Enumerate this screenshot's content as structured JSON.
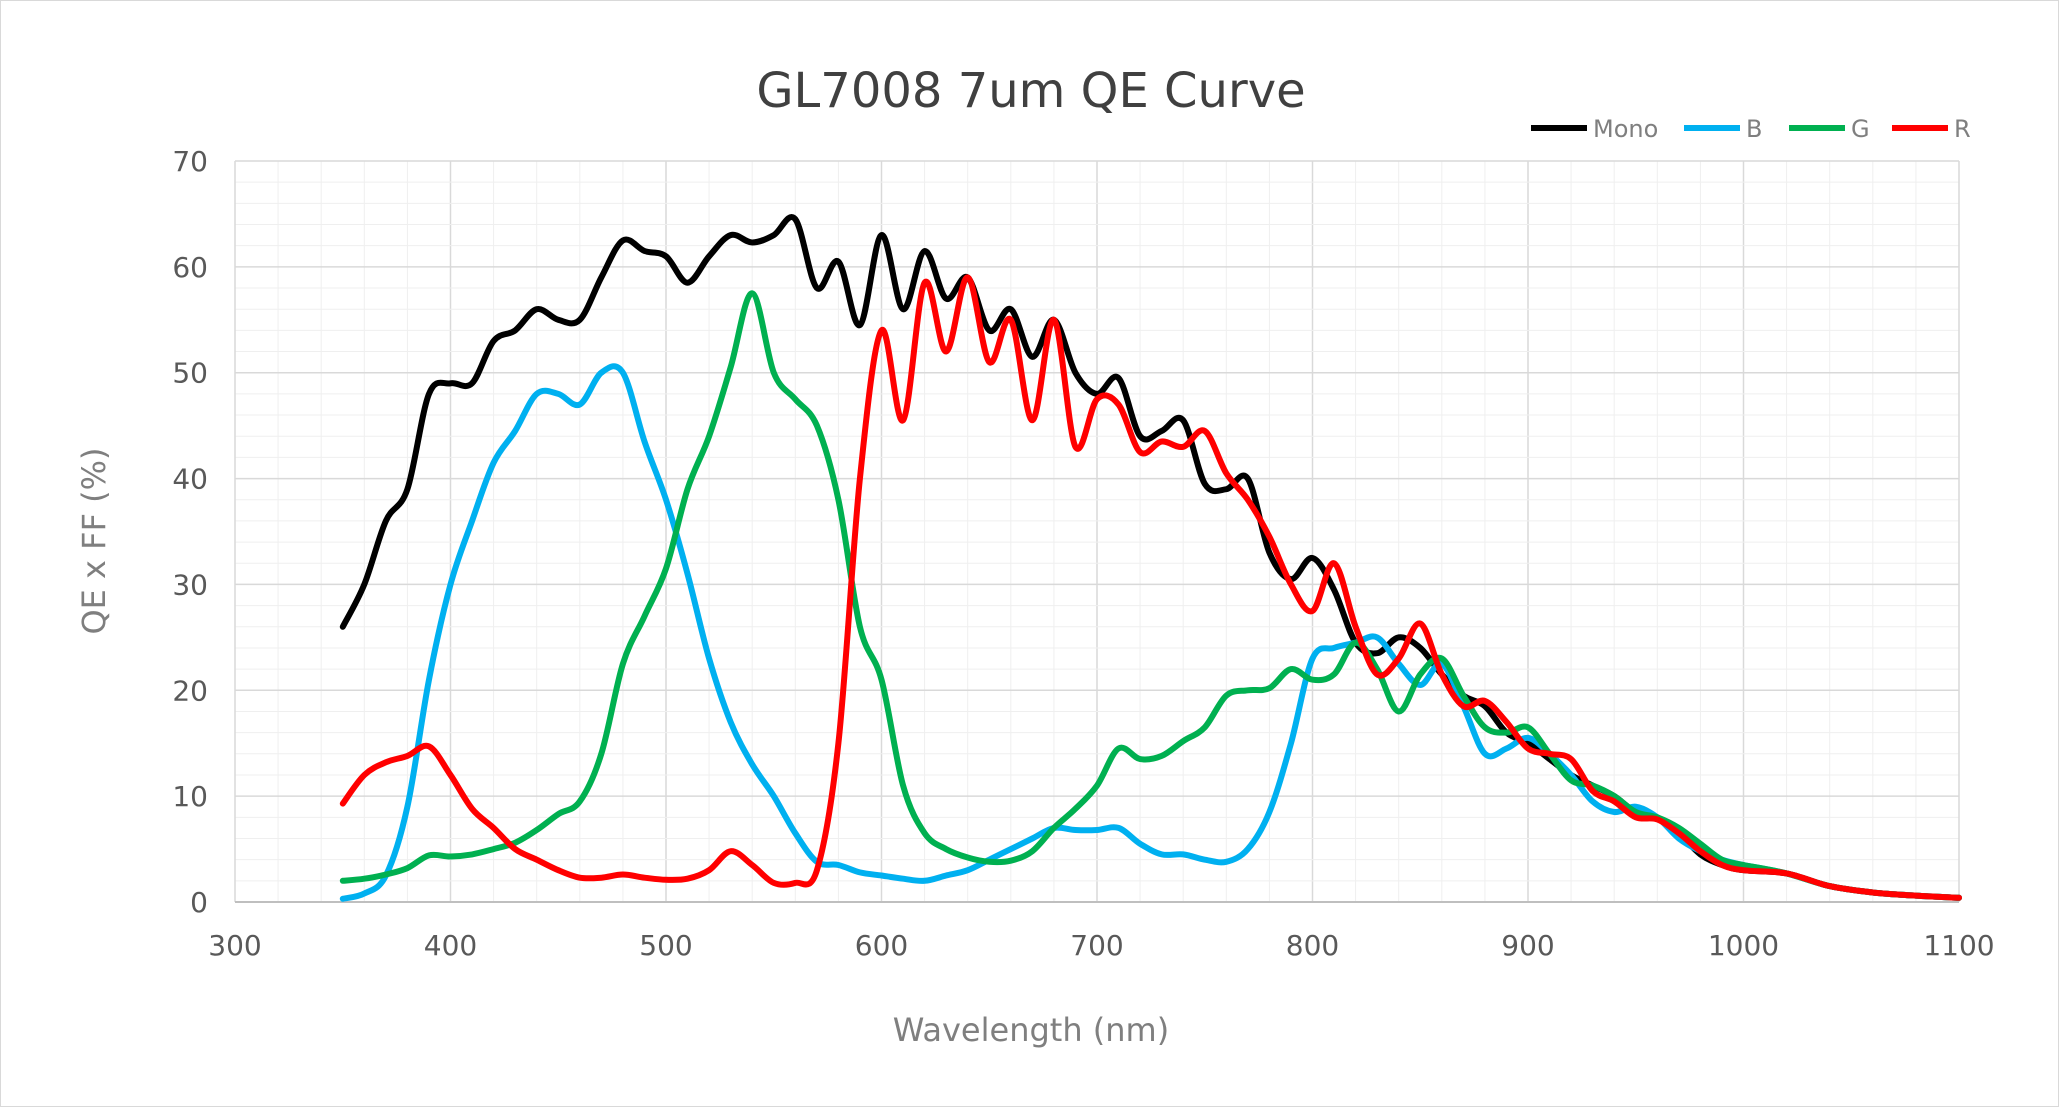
{
  "chart_data": {
    "type": "line",
    "title": "GL7008 7um QE Curve",
    "xlabel": "Wavelength (nm)",
    "ylabel": "QE x FF (%)",
    "xlim": [
      300,
      1100
    ],
    "ylim": [
      0,
      70
    ],
    "x_ticks": [
      "300",
      "400",
      "500",
      "600",
      "700",
      "800",
      "900",
      "1000",
      "1100"
    ],
    "y_ticks": [
      "0",
      "10",
      "20",
      "30",
      "40",
      "50",
      "60",
      "70"
    ],
    "grid": true,
    "minor_grid": true,
    "legend_position": "top-right",
    "series": [
      {
        "name": "Mono",
        "color": "#000000",
        "points": [
          [
            350,
            26
          ],
          [
            360,
            30
          ],
          [
            370,
            36
          ],
          [
            380,
            39
          ],
          [
            390,
            48
          ],
          [
            400,
            49
          ],
          [
            410,
            49
          ],
          [
            420,
            53
          ],
          [
            430,
            54
          ],
          [
            440,
            56
          ],
          [
            450,
            55
          ],
          [
            460,
            55
          ],
          [
            470,
            59
          ],
          [
            480,
            62.5
          ],
          [
            490,
            61.5
          ],
          [
            500,
            61
          ],
          [
            510,
            58.5
          ],
          [
            520,
            61
          ],
          [
            530,
            63
          ],
          [
            540,
            62.3
          ],
          [
            550,
            63
          ],
          [
            560,
            64.5
          ],
          [
            570,
            58
          ],
          [
            580,
            60.5
          ],
          [
            590,
            54.5
          ],
          [
            600,
            63
          ],
          [
            610,
            56
          ],
          [
            620,
            61.5
          ],
          [
            630,
            57
          ],
          [
            640,
            59
          ],
          [
            650,
            54
          ],
          [
            660,
            56
          ],
          [
            670,
            51.5
          ],
          [
            680,
            55
          ],
          [
            690,
            50
          ],
          [
            700,
            48
          ],
          [
            710,
            49.5
          ],
          [
            720,
            44
          ],
          [
            730,
            44.5
          ],
          [
            740,
            45.5
          ],
          [
            750,
            39.5
          ],
          [
            760,
            39
          ],
          [
            770,
            40
          ],
          [
            780,
            33
          ],
          [
            790,
            30.5
          ],
          [
            800,
            32.5
          ],
          [
            810,
            29.5
          ],
          [
            820,
            24.5
          ],
          [
            830,
            23.5
          ],
          [
            840,
            25
          ],
          [
            850,
            24
          ],
          [
            860,
            21.5
          ],
          [
            870,
            19.5
          ],
          [
            880,
            18.5
          ],
          [
            890,
            16
          ],
          [
            900,
            15
          ],
          [
            910,
            13.5
          ],
          [
            920,
            12
          ],
          [
            930,
            11
          ],
          [
            940,
            10
          ],
          [
            950,
            8.5
          ],
          [
            960,
            8
          ],
          [
            970,
            6.5
          ],
          [
            980,
            4.5
          ],
          [
            990,
            3.5
          ],
          [
            1000,
            3
          ],
          [
            1020,
            2.7
          ],
          [
            1040,
            1.5
          ],
          [
            1060,
            0.9
          ],
          [
            1080,
            0.6
          ],
          [
            1100,
            0.4
          ]
        ]
      },
      {
        "name": "B",
        "color": "#00b0f0",
        "points": [
          [
            350,
            0.3
          ],
          [
            360,
            0.8
          ],
          [
            370,
            2.5
          ],
          [
            380,
            9
          ],
          [
            390,
            21
          ],
          [
            400,
            30
          ],
          [
            410,
            36
          ],
          [
            420,
            41.5
          ],
          [
            430,
            44.5
          ],
          [
            440,
            48
          ],
          [
            450,
            48
          ],
          [
            460,
            47
          ],
          [
            470,
            50
          ],
          [
            480,
            50
          ],
          [
            490,
            43.5
          ],
          [
            500,
            38
          ],
          [
            510,
            31
          ],
          [
            520,
            23
          ],
          [
            530,
            17
          ],
          [
            540,
            13
          ],
          [
            550,
            10
          ],
          [
            560,
            6.5
          ],
          [
            570,
            3.8
          ],
          [
            580,
            3.5
          ],
          [
            590,
            2.8
          ],
          [
            600,
            2.5
          ],
          [
            610,
            2.2
          ],
          [
            620,
            2
          ],
          [
            630,
            2.5
          ],
          [
            640,
            3
          ],
          [
            650,
            4
          ],
          [
            660,
            5
          ],
          [
            670,
            6
          ],
          [
            680,
            7
          ],
          [
            690,
            6.8
          ],
          [
            700,
            6.8
          ],
          [
            710,
            7
          ],
          [
            720,
            5.5
          ],
          [
            730,
            4.5
          ],
          [
            740,
            4.5
          ],
          [
            750,
            4
          ],
          [
            760,
            3.8
          ],
          [
            770,
            5
          ],
          [
            780,
            8.5
          ],
          [
            790,
            15
          ],
          [
            800,
            23
          ],
          [
            810,
            24
          ],
          [
            820,
            24.5
          ],
          [
            830,
            25
          ],
          [
            840,
            22.5
          ],
          [
            850,
            20.5
          ],
          [
            860,
            22.5
          ],
          [
            870,
            18.5
          ],
          [
            880,
            14
          ],
          [
            890,
            14.5
          ],
          [
            900,
            15.5
          ],
          [
            910,
            14
          ],
          [
            920,
            12
          ],
          [
            930,
            9.5
          ],
          [
            940,
            8.5
          ],
          [
            950,
            9
          ],
          [
            960,
            8
          ],
          [
            970,
            6
          ],
          [
            980,
            4.8
          ],
          [
            990,
            4
          ],
          [
            1000,
            3.5
          ],
          [
            1020,
            2.7
          ],
          [
            1040,
            1.5
          ],
          [
            1060,
            0.9
          ],
          [
            1080,
            0.6
          ],
          [
            1100,
            0.4
          ]
        ]
      },
      {
        "name": "G",
        "color": "#00b050",
        "points": [
          [
            350,
            2
          ],
          [
            360,
            2.2
          ],
          [
            370,
            2.6
          ],
          [
            380,
            3.2
          ],
          [
            390,
            4.4
          ],
          [
            400,
            4.3
          ],
          [
            410,
            4.5
          ],
          [
            420,
            5
          ],
          [
            430,
            5.6
          ],
          [
            440,
            6.8
          ],
          [
            450,
            8.3
          ],
          [
            460,
            9.5
          ],
          [
            470,
            14
          ],
          [
            480,
            22.5
          ],
          [
            490,
            27
          ],
          [
            500,
            31.5
          ],
          [
            510,
            39
          ],
          [
            520,
            44
          ],
          [
            530,
            50.5
          ],
          [
            540,
            57.5
          ],
          [
            550,
            50
          ],
          [
            560,
            47.5
          ],
          [
            570,
            45
          ],
          [
            580,
            38
          ],
          [
            590,
            26
          ],
          [
            600,
            21
          ],
          [
            610,
            11
          ],
          [
            620,
            6.5
          ],
          [
            630,
            5
          ],
          [
            640,
            4.2
          ],
          [
            650,
            3.8
          ],
          [
            660,
            3.9
          ],
          [
            670,
            4.8
          ],
          [
            680,
            7
          ],
          [
            690,
            8.8
          ],
          [
            700,
            11
          ],
          [
            710,
            14.5
          ],
          [
            720,
            13.5
          ],
          [
            730,
            13.8
          ],
          [
            740,
            15.2
          ],
          [
            750,
            16.5
          ],
          [
            760,
            19.5
          ],
          [
            770,
            20
          ],
          [
            780,
            20.2
          ],
          [
            790,
            22
          ],
          [
            800,
            21
          ],
          [
            810,
            21.5
          ],
          [
            820,
            24.5
          ],
          [
            830,
            22
          ],
          [
            840,
            18
          ],
          [
            850,
            21.5
          ],
          [
            860,
            23
          ],
          [
            870,
            19.5
          ],
          [
            880,
            16.5
          ],
          [
            890,
            16
          ],
          [
            900,
            16.5
          ],
          [
            910,
            14
          ],
          [
            920,
            11.5
          ],
          [
            930,
            11
          ],
          [
            940,
            10
          ],
          [
            950,
            8.5
          ],
          [
            960,
            8
          ],
          [
            970,
            7
          ],
          [
            980,
            5.5
          ],
          [
            990,
            4
          ],
          [
            1000,
            3.5
          ],
          [
            1020,
            2.7
          ],
          [
            1040,
            1.5
          ],
          [
            1060,
            0.9
          ],
          [
            1080,
            0.6
          ],
          [
            1100,
            0.4
          ]
        ]
      },
      {
        "name": "R",
        "color": "#ff0000",
        "points": [
          [
            350,
            9.3
          ],
          [
            360,
            12
          ],
          [
            370,
            13.2
          ],
          [
            380,
            13.8
          ],
          [
            390,
            14.7
          ],
          [
            400,
            12
          ],
          [
            410,
            8.8
          ],
          [
            420,
            7
          ],
          [
            430,
            5
          ],
          [
            440,
            4
          ],
          [
            450,
            3
          ],
          [
            460,
            2.3
          ],
          [
            470,
            2.3
          ],
          [
            480,
            2.6
          ],
          [
            490,
            2.3
          ],
          [
            500,
            2.1
          ],
          [
            510,
            2.2
          ],
          [
            520,
            3
          ],
          [
            530,
            4.8
          ],
          [
            540,
            3.5
          ],
          [
            550,
            1.8
          ],
          [
            560,
            1.8
          ],
          [
            570,
            3
          ],
          [
            580,
            15
          ],
          [
            590,
            40
          ],
          [
            600,
            54
          ],
          [
            610,
            45.5
          ],
          [
            620,
            58.5
          ],
          [
            630,
            52
          ],
          [
            640,
            59
          ],
          [
            650,
            51
          ],
          [
            660,
            55
          ],
          [
            670,
            45.5
          ],
          [
            680,
            55
          ],
          [
            690,
            43
          ],
          [
            700,
            47.5
          ],
          [
            710,
            47
          ],
          [
            720,
            42.5
          ],
          [
            730,
            43.5
          ],
          [
            740,
            43
          ],
          [
            750,
            44.5
          ],
          [
            760,
            40.5
          ],
          [
            770,
            38
          ],
          [
            780,
            34.5
          ],
          [
            790,
            30
          ],
          [
            800,
            27.5
          ],
          [
            810,
            32
          ],
          [
            820,
            26
          ],
          [
            830,
            21.5
          ],
          [
            840,
            23
          ],
          [
            850,
            26.3
          ],
          [
            860,
            21.5
          ],
          [
            870,
            18.5
          ],
          [
            880,
            19
          ],
          [
            890,
            17
          ],
          [
            900,
            14.5
          ],
          [
            910,
            14
          ],
          [
            920,
            13.5
          ],
          [
            930,
            10.5
          ],
          [
            940,
            9.5
          ],
          [
            950,
            8
          ],
          [
            960,
            7.8
          ],
          [
            970,
            6.5
          ],
          [
            980,
            4.8
          ],
          [
            990,
            3.5
          ],
          [
            1000,
            3
          ],
          [
            1020,
            2.7
          ],
          [
            1040,
            1.5
          ],
          [
            1060,
            0.9
          ],
          [
            1080,
            0.6
          ],
          [
            1100,
            0.4
          ]
        ]
      }
    ]
  }
}
